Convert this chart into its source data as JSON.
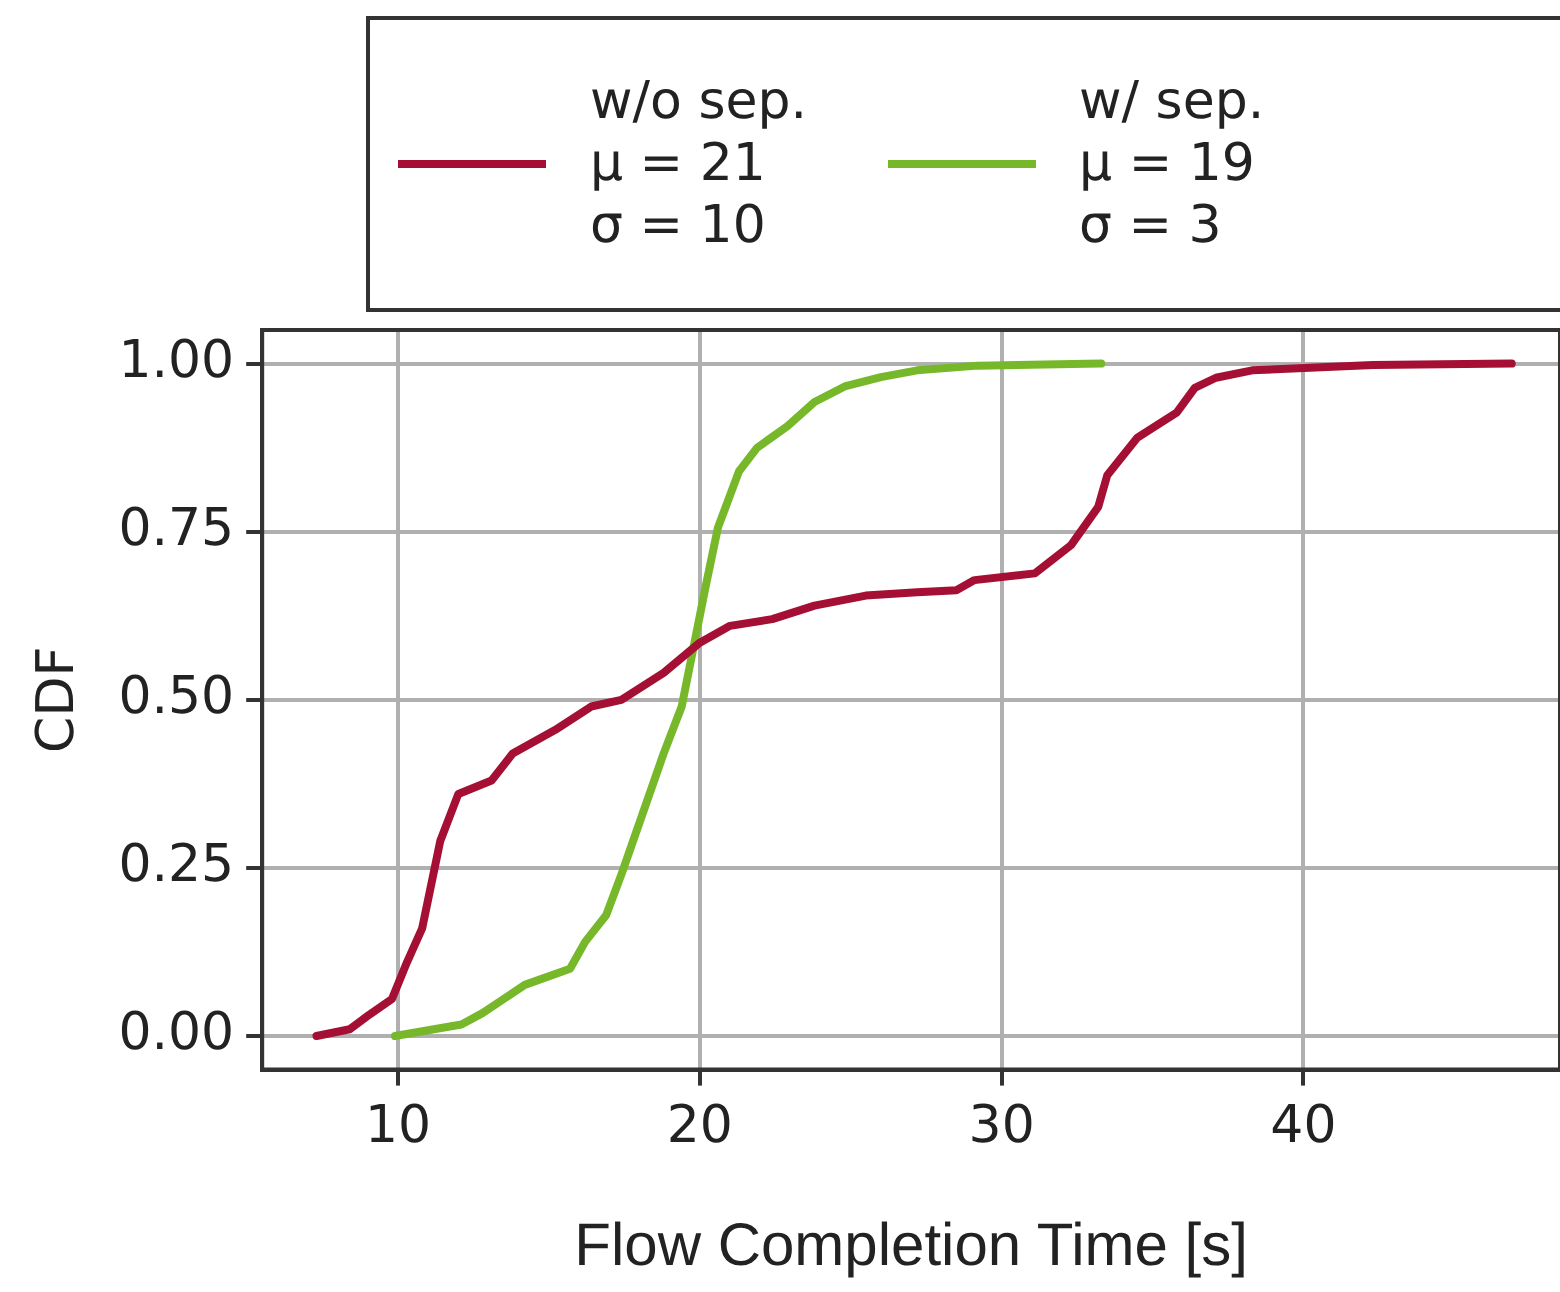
{
  "chart_data": {
    "type": "line",
    "xlabel": "Flow Completion Time [s]",
    "ylabel": "CDF",
    "xlim": [
      5.5,
      48.5
    ],
    "xticks": [
      10,
      20,
      30,
      40
    ],
    "ylim": [
      -0.05,
      1.05
    ],
    "yticks": [
      {
        "value": 0,
        "label": "0.00"
      },
      {
        "value": 0.25,
        "label": "0.25"
      },
      {
        "value": 0.5,
        "label": "0.50"
      },
      {
        "value": 0.75,
        "label": "0.75"
      },
      {
        "value": 1,
        "label": "1.00"
      }
    ],
    "grid": true,
    "legend": "top",
    "marker": "none",
    "line_style": "solid",
    "series": [
      {
        "name": "w/o sep.\nμ = 21\nσ = 10",
        "color": "#a50f34",
        "x": [
          7.3,
          8.4,
          9.0,
          9.8,
          10.3,
          10.8,
          11.4,
          12.0,
          13.1,
          13.8,
          15.2,
          16.4,
          17.4,
          18.8,
          20.0,
          21.0,
          22.4,
          23.8,
          25.5,
          27.2,
          28.5,
          29.1,
          31.1,
          32.3,
          33.2,
          33.5,
          34.5,
          35.2,
          35.8,
          36.4,
          37.1,
          38.3,
          42.3,
          46.9
        ],
        "values": [
          0,
          0.01,
          0.03,
          0.055,
          0.11,
          0.16,
          0.29,
          0.36,
          0.38,
          0.42,
          0.455,
          0.49,
          0.5,
          0.54,
          0.585,
          0.61,
          0.62,
          0.64,
          0.655,
          0.66,
          0.663,
          0.678,
          0.688,
          0.73,
          0.787,
          0.834,
          0.89,
          0.91,
          0.927,
          0.964,
          0.979,
          0.99,
          0.998,
          1
        ]
      },
      {
        "name": "w/ sep.\nμ = 19\nσ = 3",
        "color": "#77b82a",
        "x": [
          9.9,
          12.1,
          12.8,
          14.2,
          15.7,
          16.2,
          16.9,
          17.4,
          18.1,
          18.8,
          19.4,
          19.8,
          20.2,
          20.6,
          21.3,
          21.9,
          22.9,
          23.8,
          24.8,
          26.0,
          27.2,
          29.2,
          33.3
        ],
        "values": [
          0,
          0.017,
          0.034,
          0.076,
          0.1,
          0.14,
          0.18,
          0.24,
          0.33,
          0.42,
          0.49,
          0.58,
          0.67,
          0.756,
          0.84,
          0.875,
          0.907,
          0.943,
          0.966,
          0.98,
          0.99,
          0.997,
          1
        ]
      }
    ]
  }
}
